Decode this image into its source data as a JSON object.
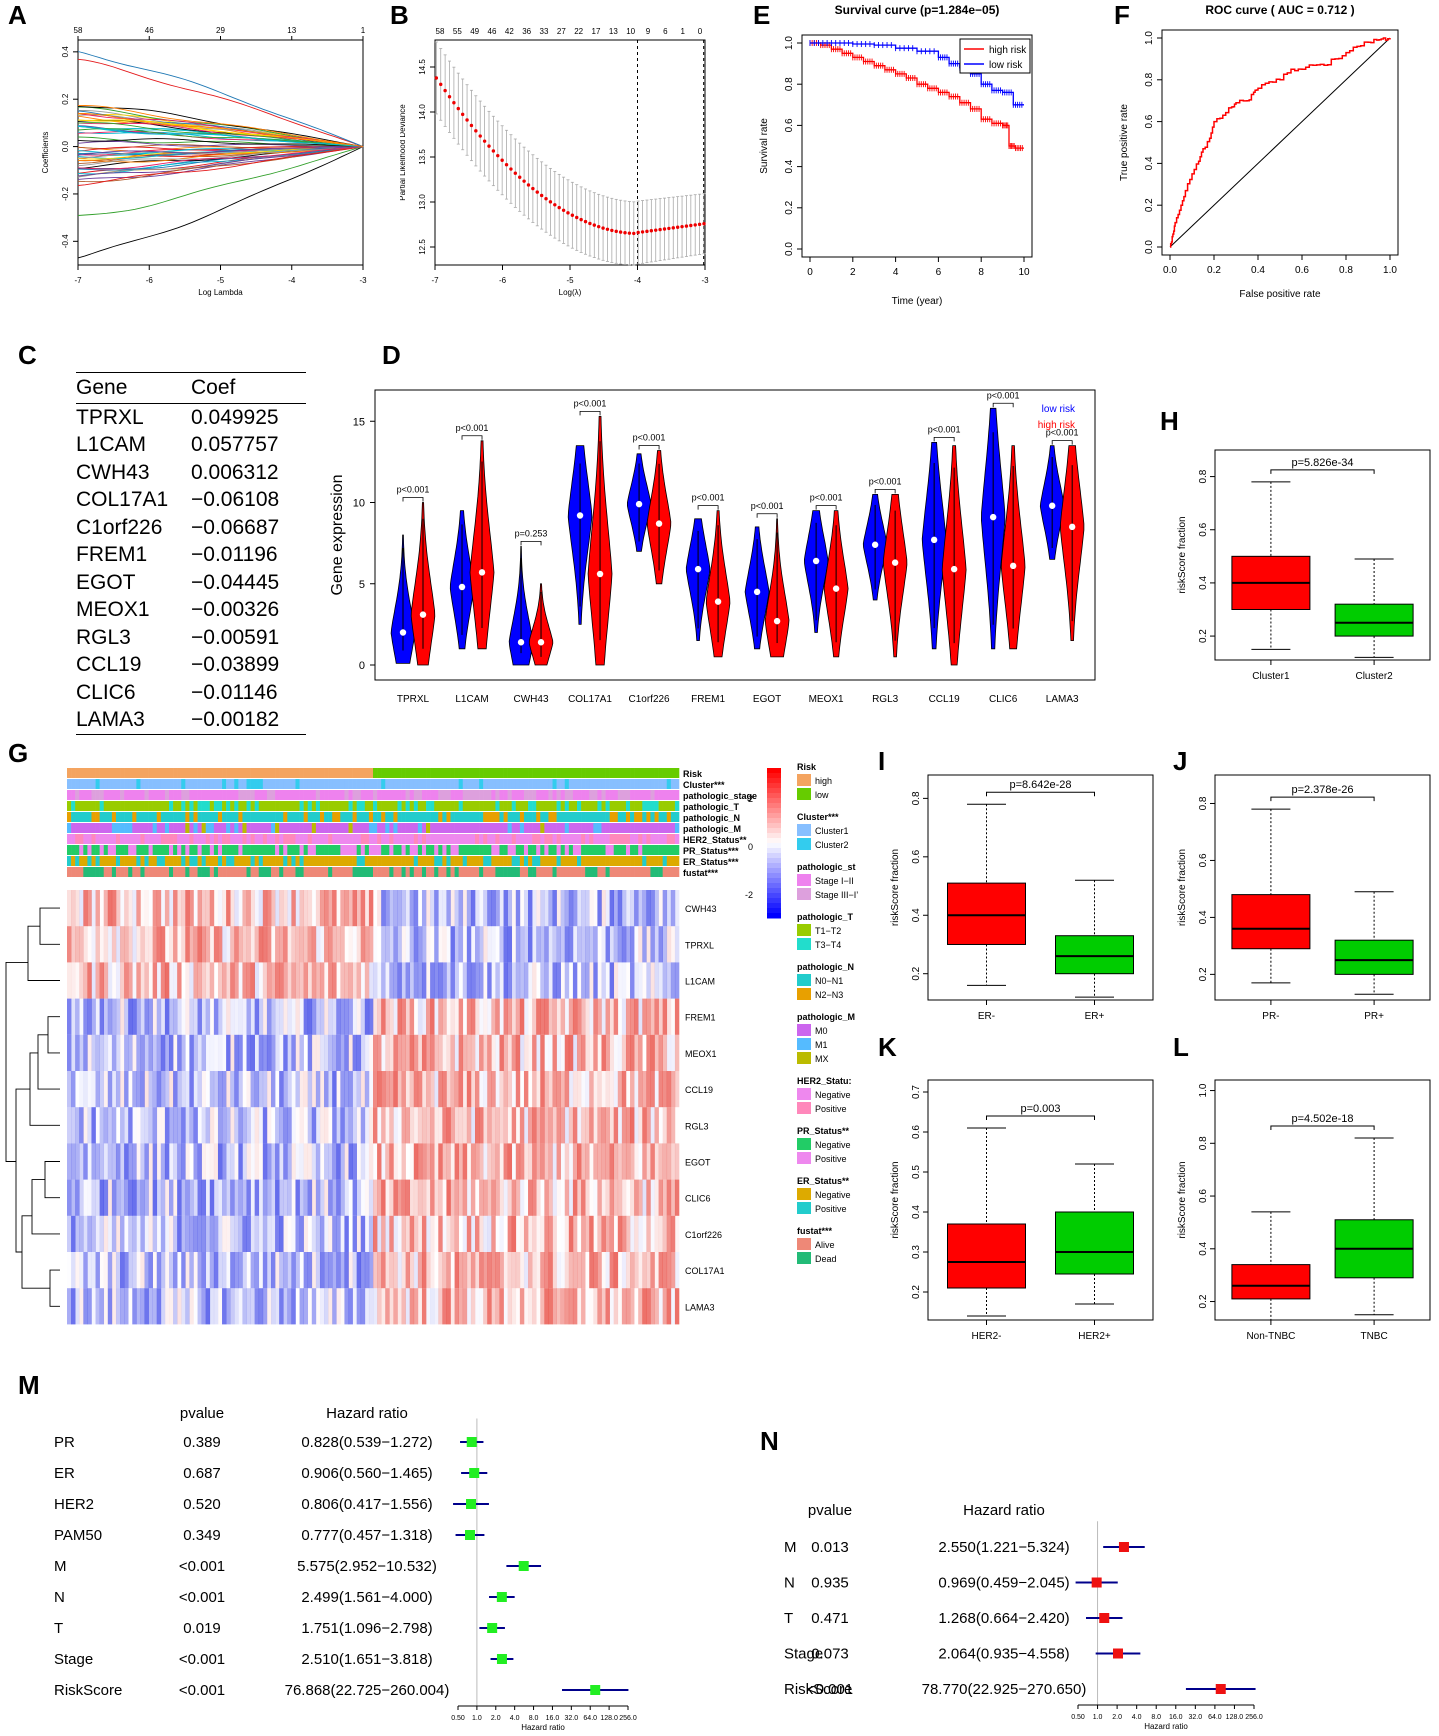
{
  "panel_labels": {
    "A": "A",
    "B": "B",
    "C": "C",
    "D": "D",
    "E": "E",
    "F": "F",
    "G": "G",
    "H": "H",
    "I": "I",
    "J": "J",
    "K": "K",
    "L": "L",
    "M": "M",
    "N": "N"
  },
  "colors": {
    "red": "#ff0000",
    "blue": "#0000ff",
    "green": "#00cc00",
    "lred": "#e8412f",
    "lgreen": "#22dd22"
  },
  "chart_data": [
    {
      "id": "A",
      "type": "line",
      "title": "",
      "xlabel": "Log Lambda",
      "ylabel": "Coefficients",
      "xlim": [
        -7,
        -3
      ],
      "ylim": [
        -0.5,
        0.45
      ],
      "x_ticks": [
        "-7",
        "-6",
        "-5",
        "-4",
        "-3"
      ],
      "y_ticks": [
        "-0.4",
        "-0.2",
        "0.0",
        "0.2",
        "0.4"
      ],
      "top_ticks": [
        "58",
        "46",
        "29",
        "13",
        "1"
      ],
      "series_count": 58
    },
    {
      "id": "B",
      "type": "scatter",
      "title": "",
      "xlabel": "Log(λ)",
      "ylabel": "Partial Likelihood Deviance",
      "xlim": [
        -7,
        -3
      ],
      "ylim": [
        12.3,
        14.8
      ],
      "x_ticks": [
        "-7",
        "-6",
        "-5",
        "-4",
        "-3"
      ],
      "y_ticks": [
        "12.5",
        "13.0",
        "13.5",
        "14.0",
        "14.5"
      ],
      "top_ticks": [
        "58",
        "55",
        "49",
        "46",
        "42",
        "36",
        "33",
        "27",
        "22",
        "17",
        "13",
        "10",
        "9",
        "6",
        "1",
        "0"
      ],
      "vlines": [
        -4.0,
        -3.02
      ]
    },
    {
      "id": "C",
      "type": "table",
      "columns": [
        "Gene",
        "Coef"
      ],
      "rows": [
        [
          "TPRXL",
          "0.049925"
        ],
        [
          "L1CAM",
          "0.057757"
        ],
        [
          "CWH43",
          "0.006312"
        ],
        [
          "COL17A1",
          "-0.06108"
        ],
        [
          "C1orf226",
          "-0.06687"
        ],
        [
          "FREM1",
          "-0.01196"
        ],
        [
          "EGOT",
          "-0.04445"
        ],
        [
          "MEOX1",
          "-0.00326"
        ],
        [
          "RGL3",
          "-0.00591"
        ],
        [
          "CCL19",
          "-0.03899"
        ],
        [
          "CLIC6",
          "-0.01146"
        ],
        [
          "LAMA3",
          "-0.00182"
        ]
      ]
    },
    {
      "id": "D",
      "type": "violin",
      "ylabel": "Gene expression",
      "ylim": [
        0,
        16
      ],
      "y_ticks": [
        "0",
        "5",
        "10",
        "15"
      ],
      "legend": [
        "low risk",
        "high risk"
      ],
      "genes": [
        "TPRXL",
        "L1CAM",
        "CWH43",
        "COL17A1",
        "C1orf226",
        "FREM1",
        "EGOT",
        "MEOX1",
        "RGL3",
        "CCL19",
        "CLIC6",
        "LAMA3"
      ],
      "pvalues": [
        "p<0.001",
        "p<0.001",
        "p=0.253",
        "p<0.001",
        "p<0.001",
        "p<0.001",
        "p<0.001",
        "p<0.001",
        "p<0.001",
        "p<0.001",
        "p<0.001",
        "p<0.001"
      ],
      "low": [
        {
          "med": 2.0,
          "min": 0.1,
          "max": 8.0
        },
        {
          "med": 4.8,
          "min": 1.0,
          "max": 9.5
        },
        {
          "med": 1.4,
          "min": 0.0,
          "max": 7.3
        },
        {
          "med": 9.2,
          "min": 2.5,
          "min2": 2.5,
          "max": 13.5
        },
        {
          "med": 9.9,
          "min": 7.0,
          "max": 13.0
        },
        {
          "med": 5.9,
          "min": 1.5,
          "max": 9.0
        },
        {
          "med": 4.5,
          "min": 1.0,
          "max": 8.5
        },
        {
          "med": 6.4,
          "min": 2.0,
          "max": 9.5
        },
        {
          "med": 7.4,
          "min": 4.0,
          "max": 10.5
        },
        {
          "med": 7.7,
          "min": 1.0,
          "max": 13.7
        },
        {
          "med": 9.1,
          "min": 1.0,
          "max": 15.8
        },
        {
          "med": 9.8,
          "min": 6.5,
          "max": 13.5
        }
      ],
      "high": [
        {
          "med": 3.1,
          "min": 0.0,
          "max": 10.0
        },
        {
          "med": 5.7,
          "min": 1.0,
          "max": 13.8
        },
        {
          "med": 1.4,
          "min": 0.0,
          "max": 5.0
        },
        {
          "med": 5.6,
          "min": 0.0,
          "max": 15.3
        },
        {
          "med": 8.7,
          "min": 5.0,
          "max": 13.2
        },
        {
          "med": 3.9,
          "min": 0.5,
          "max": 9.5
        },
        {
          "med": 2.7,
          "min": 0.5,
          "max": 9.0
        },
        {
          "med": 4.7,
          "min": 0.5,
          "max": 9.5
        },
        {
          "med": 6.3,
          "min": 0.5,
          "max": 10.5
        },
        {
          "med": 5.9,
          "min": 0.0,
          "max": 13.5
        },
        {
          "med": 6.1,
          "min": 1.0,
          "max": 13.5
        },
        {
          "med": 8.5,
          "min": 1.5,
          "max": 13.5
        }
      ]
    },
    {
      "id": "E",
      "type": "line",
      "title": "Survival curve (p=1.284e−05)",
      "xlabel": "Time (year)",
      "ylabel": "Survival rate",
      "xlim": [
        0,
        10
      ],
      "ylim": [
        0,
        1
      ],
      "x_ticks": [
        "0",
        "2",
        "4",
        "6",
        "8",
        "10"
      ],
      "y_ticks": [
        "0.0",
        "0.2",
        "0.4",
        "0.6",
        "0.8",
        "1.0"
      ],
      "series": [
        {
          "name": "high risk",
          "x": [
            0,
            0.5,
            1,
            1.5,
            2,
            2.5,
            3,
            3.5,
            4,
            4.5,
            5,
            5.5,
            6,
            6.5,
            7,
            7.5,
            8,
            8.5,
            9,
            9.3,
            9.6,
            10
          ],
          "y": [
            1,
            0.99,
            0.97,
            0.95,
            0.93,
            0.91,
            0.89,
            0.87,
            0.85,
            0.83,
            0.8,
            0.78,
            0.76,
            0.74,
            0.71,
            0.68,
            0.63,
            0.61,
            0.6,
            0.5,
            0.49,
            0.49
          ]
        },
        {
          "name": "low risk",
          "x": [
            0,
            1,
            2,
            3,
            4,
            5,
            6,
            6.5,
            7,
            7.5,
            8,
            8.5,
            9,
            9.5,
            10
          ],
          "y": [
            1,
            1,
            0.995,
            0.99,
            0.975,
            0.96,
            0.93,
            0.9,
            0.88,
            0.85,
            0.8,
            0.77,
            0.76,
            0.7,
            0.7
          ]
        }
      ]
    },
    {
      "id": "F",
      "type": "line",
      "title": "ROC curve ( AUC =  0.712 )",
      "xlabel": "False positive rate",
      "ylabel": "True positive rate",
      "xlim": [
        0,
        1
      ],
      "ylim": [
        0,
        1
      ],
      "x_ticks": [
        "0.0",
        "0.2",
        "0.4",
        "0.6",
        "0.8",
        "1.0"
      ],
      "y_ticks": [
        "0.0",
        "0.2",
        "0.4",
        "0.6",
        "0.8",
        "1.0"
      ],
      "series": [
        {
          "name": "ROC",
          "x": [
            0,
            0.01,
            0.02,
            0.03,
            0.05,
            0.07,
            0.1,
            0.13,
            0.15,
            0.18,
            0.2,
            0.24,
            0.28,
            0.3,
            0.35,
            0.38,
            0.4,
            0.45,
            0.5,
            0.55,
            0.6,
            0.65,
            0.7,
            0.75,
            0.8,
            0.85,
            0.9,
            0.94,
            0.97,
            1.0
          ],
          "y": [
            0,
            0.05,
            0.1,
            0.14,
            0.2,
            0.27,
            0.35,
            0.41,
            0.47,
            0.52,
            0.6,
            0.63,
            0.67,
            0.69,
            0.7,
            0.74,
            0.76,
            0.79,
            0.8,
            0.85,
            0.85,
            0.87,
            0.87,
            0.9,
            0.93,
            0.96,
            0.98,
            0.99,
            1.0,
            1.0
          ]
        }
      ]
    },
    {
      "id": "G",
      "type": "heatmap",
      "annotation_rows": [
        "Risk",
        "Cluster***",
        "pathologic_stage",
        "pathologic_T",
        "pathologic_N",
        "pathologic_M",
        "HER2_Status**",
        "PR_Status***",
        "ER_Status***",
        "fustat***"
      ],
      "genes": [
        "CWH43",
        "TPRXL",
        "L1CAM",
        "FREM1",
        "MEOX1",
        "CCL19",
        "RGL3",
        "EGOT",
        "CLIC6",
        "C1orf226",
        "COL17A1",
        "LAMA3"
      ],
      "colorbar_ticks": [
        "2",
        "0",
        "-2"
      ],
      "legend_groups": [
        {
          "title": "Risk",
          "items": [
            "high",
            "low"
          ]
        },
        {
          "title": "Cluster***",
          "items": [
            "Cluster1",
            "Cluster2"
          ]
        },
        {
          "title": "pathologic_st",
          "items": [
            "Stage I−II",
            "Stage III−I’"
          ]
        },
        {
          "title": "pathologic_T",
          "items": [
            "T1−T2",
            "T3−T4"
          ]
        },
        {
          "title": "pathologic_N",
          "items": [
            "N0−N1",
            "N2−N3"
          ]
        },
        {
          "title": "pathologic_M",
          "items": [
            "M0",
            "M1",
            "MX"
          ]
        },
        {
          "title": "HER2_Statu:",
          "items": [
            "Negative",
            "Positive"
          ]
        },
        {
          "title": "PR_Status**",
          "items": [
            "Negative",
            "Positive"
          ]
        },
        {
          "title": "ER_Status**",
          "items": [
            "Negative",
            "Positive"
          ]
        },
        {
          "title": "fustat***",
          "items": [
            "Alive",
            "Dead"
          ]
        }
      ],
      "legend_colors": [
        [
          "#f4a460",
          "#66cc00"
        ],
        [
          "#87bfff",
          "#33ccee"
        ],
        [
          "#ee82ee",
          "#dda0dd"
        ],
        [
          "#99cc00",
          "#22ddcc"
        ],
        [
          "#22cccc",
          "#e8a000"
        ],
        [
          "#cc66ee",
          "#55bbff",
          "#bbbb00"
        ],
        [
          "#ee88ee",
          "#ff88bb"
        ],
        [
          "#22cc66",
          "#ee88ee"
        ],
        [
          "#ddaa00",
          "#22cccc"
        ],
        [
          "#ee8877",
          "#22bb77"
        ]
      ]
    },
    {
      "id": "H",
      "type": "box",
      "ylabel": "riskScore fraction",
      "ylim": [
        0.11,
        0.9
      ],
      "y_ticks": [
        "0.2",
        "0.4",
        "0.6",
        "0.8"
      ],
      "pvalue": "p=5.826e-34",
      "groups": [
        {
          "name": "Cluster1",
          "q1": 0.3,
          "med": 0.4,
          "q3": 0.5,
          "lo": 0.15,
          "hi": 0.78,
          "color": "#ff0000"
        },
        {
          "name": "Cluster2",
          "q1": 0.2,
          "med": 0.25,
          "q3": 0.32,
          "lo": 0.12,
          "hi": 0.49,
          "color": "#00cc00"
        }
      ]
    },
    {
      "id": "I",
      "type": "box",
      "ylabel": "riskScore fraction",
      "ylim": [
        0.11,
        0.88
      ],
      "y_ticks": [
        "0.2",
        "0.4",
        "0.6",
        "0.8"
      ],
      "pvalue": "p=8.642e-28",
      "groups": [
        {
          "name": "ER-",
          "q1": 0.3,
          "med": 0.4,
          "q3": 0.51,
          "lo": 0.16,
          "hi": 0.78,
          "color": "#ff0000"
        },
        {
          "name": "ER+",
          "q1": 0.2,
          "med": 0.26,
          "q3": 0.33,
          "lo": 0.12,
          "hi": 0.52,
          "color": "#00cc00"
        }
      ]
    },
    {
      "id": "J",
      "type": "box",
      "ylabel": "riskScore fraction",
      "ylim": [
        0.11,
        0.9
      ],
      "y_ticks": [
        "0.2",
        "0.4",
        "0.6",
        "0.8"
      ],
      "pvalue": "p=2.378e-26",
      "groups": [
        {
          "name": "PR-",
          "q1": 0.29,
          "med": 0.36,
          "q3": 0.48,
          "lo": 0.17,
          "hi": 0.78,
          "color": "#ff0000"
        },
        {
          "name": "PR+",
          "q1": 0.2,
          "med": 0.25,
          "q3": 0.32,
          "lo": 0.13,
          "hi": 0.49,
          "color": "#00cc00"
        }
      ]
    },
    {
      "id": "K",
      "type": "box",
      "ylabel": "riskScore fraction",
      "ylim": [
        0.13,
        0.73
      ],
      "y_ticks": [
        "0.2",
        "0.3",
        "0.4",
        "0.5",
        "0.6",
        "0.7"
      ],
      "pvalue": "p=0.003",
      "groups": [
        {
          "name": "HER2-",
          "q1": 0.21,
          "med": 0.275,
          "q3": 0.37,
          "lo": 0.14,
          "hi": 0.61,
          "color": "#ff0000"
        },
        {
          "name": "HER2+",
          "q1": 0.245,
          "med": 0.3,
          "q3": 0.4,
          "lo": 0.17,
          "hi": 0.52,
          "color": "#00cc00"
        }
      ]
    },
    {
      "id": "L",
      "type": "box",
      "ylabel": "riskScore fraction",
      "ylim": [
        0.13,
        1.04
      ],
      "y_ticks": [
        "0.2",
        "0.4",
        "0.6",
        "0.8",
        "1.0"
      ],
      "pvalue": "p=4.502e-18",
      "groups": [
        {
          "name": "Non-TNBC",
          "q1": 0.21,
          "med": 0.26,
          "q3": 0.34,
          "lo": 0.13,
          "hi": 0.54,
          "color": "#ff0000"
        },
        {
          "name": "TNBC",
          "q1": 0.29,
          "med": 0.4,
          "q3": 0.51,
          "lo": 0.15,
          "hi": 0.82,
          "color": "#00cc00"
        }
      ]
    },
    {
      "id": "M",
      "type": "forest",
      "headers": [
        "pvalue",
        "Hazard ratio"
      ],
      "xlabel": "Hazard ratio",
      "x_ticks": [
        "0.50",
        "1.0",
        "2.0",
        "4.0",
        "8.0",
        "16.0",
        "32.0",
        "64.0",
        "128.0",
        "256.0"
      ],
      "rows": [
        {
          "name": "PR",
          "p": "0.389",
          "hr_text": "0.828(0.539−1.272)",
          "hr": 0.828,
          "lo": 0.539,
          "hi": 1.272
        },
        {
          "name": "ER",
          "p": "0.687",
          "hr_text": "0.906(0.560−1.465)",
          "hr": 0.906,
          "lo": 0.56,
          "hi": 1.465
        },
        {
          "name": "HER2",
          "p": "0.520",
          "hr_text": "0.806(0.417−1.556)",
          "hr": 0.806,
          "lo": 0.417,
          "hi": 1.556
        },
        {
          "name": "PAM50",
          "p": "0.349",
          "hr_text": "0.777(0.457−1.318)",
          "hr": 0.777,
          "lo": 0.457,
          "hi": 1.318
        },
        {
          "name": "M",
          "p": "<0.001",
          "hr_text": "5.575(2.952−10.532)",
          "hr": 5.575,
          "lo": 2.952,
          "hi": 10.532
        },
        {
          "name": "N",
          "p": "<0.001",
          "hr_text": "2.499(1.561−4.000)",
          "hr": 2.499,
          "lo": 1.561,
          "hi": 4.0
        },
        {
          "name": "T",
          "p": "0.019",
          "hr_text": "1.751(1.096−2.798)",
          "hr": 1.751,
          "lo": 1.096,
          "hi": 2.798
        },
        {
          "name": "Stage",
          "p": "<0.001",
          "hr_text": "2.510(1.651−3.818)",
          "hr": 2.51,
          "lo": 1.651,
          "hi": 3.818
        },
        {
          "name": "RiskScore",
          "p": "<0.001",
          "hr_text": "76.868(22.725−260.004)",
          "hr": 76.868,
          "lo": 22.725,
          "hi": 260.004
        }
      ]
    },
    {
      "id": "N",
      "type": "forest",
      "headers": [
        "pvalue",
        "Hazard ratio"
      ],
      "xlabel": "Hazard ratio",
      "x_ticks": [
        "0.50",
        "1.0",
        "2.0",
        "4.0",
        "8.0",
        "16.0",
        "32.0",
        "64.0",
        "128.0",
        "256.0"
      ],
      "rows": [
        {
          "name": "M",
          "p": "0.013",
          "hr_text": "2.550(1.221−5.324)",
          "hr": 2.55,
          "lo": 1.221,
          "hi": 5.324
        },
        {
          "name": "N",
          "p": "0.935",
          "hr_text": "0.969(0.459−2.045)",
          "hr": 0.969,
          "lo": 0.459,
          "hi": 2.045
        },
        {
          "name": "T",
          "p": "0.471",
          "hr_text": "1.268(0.664−2.420)",
          "hr": 1.268,
          "lo": 0.664,
          "hi": 2.42
        },
        {
          "name": "Stage",
          "p": "0.073",
          "hr_text": "2.064(0.935−4.558)",
          "hr": 2.064,
          "lo": 0.935,
          "hi": 4.558
        },
        {
          "name": "RiskScore",
          "p": "<0.001",
          "hr_text": "78.770(22.925−270.650)",
          "hr": 78.77,
          "lo": 22.925,
          "hi": 270.65
        }
      ]
    }
  ]
}
